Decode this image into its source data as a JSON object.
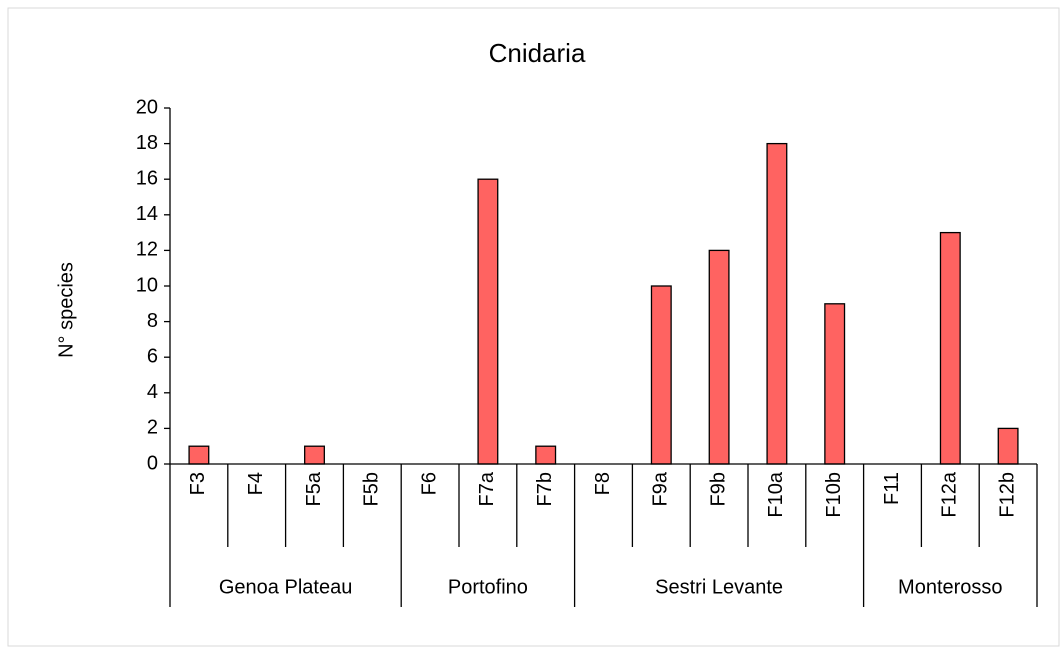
{
  "chart_data": {
    "type": "bar",
    "title": "Cnidaria",
    "y_label": "N° species",
    "categories": [
      "F3",
      "F4",
      "F5a",
      "F5b",
      "F6",
      "F7a",
      "F7b",
      "F8",
      "F9a",
      "F9b",
      "F10a",
      "F10b",
      "F11",
      "F12a",
      "F12b"
    ],
    "values": [
      1,
      0,
      1,
      0,
      0,
      16,
      1,
      0,
      10,
      12,
      18,
      9,
      0,
      13,
      2
    ],
    "groups": [
      {
        "label": "Genoa Plateau",
        "count": 4
      },
      {
        "label": "Portofino",
        "count": 3
      },
      {
        "label": "Sestri Levante",
        "count": 5
      },
      {
        "label": "Monterosso",
        "count": 3
      }
    ],
    "color": "#ff6361",
    "ylim": [
      0,
      20
    ],
    "yticks": [
      0,
      2,
      4,
      6,
      8,
      10,
      12,
      14,
      16,
      18,
      20
    ],
    "grid": false
  }
}
